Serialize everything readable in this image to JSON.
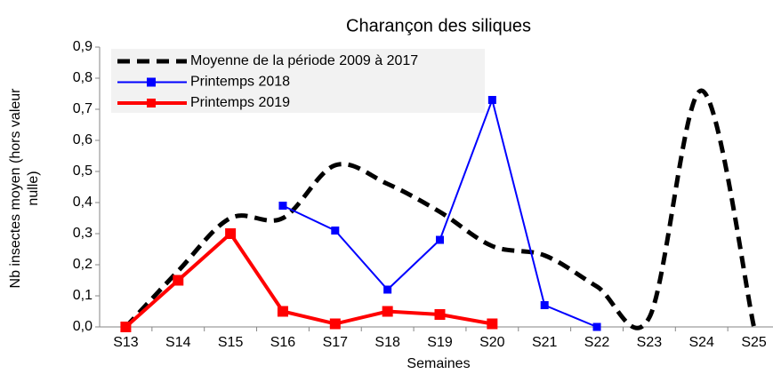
{
  "chart_data": {
    "type": "line",
    "title": "Charançon des siliques",
    "xlabel": "Semaines",
    "ylabel": [
      "Nb insectes moyen  (hors valeur",
      "nulle)"
    ],
    "categories": [
      "S13",
      "S14",
      "S15",
      "S16",
      "S17",
      "S18",
      "S19",
      "S20",
      "S21",
      "S22",
      "S23",
      "S24",
      "S25"
    ],
    "ylim": [
      0,
      0.9
    ],
    "yticks": [
      {
        "value": 0,
        "label": "0,0"
      },
      {
        "value": 0.1,
        "label": "0,1"
      },
      {
        "value": 0.2,
        "label": "0,2"
      },
      {
        "value": 0.3,
        "label": "0,3"
      },
      {
        "value": 0.4,
        "label": "0,4"
      },
      {
        "value": 0.5,
        "label": "0,5"
      },
      {
        "value": 0.6,
        "label": "0,6"
      },
      {
        "value": 0.7,
        "label": "0,7"
      },
      {
        "value": 0.8,
        "label": "0,8"
      },
      {
        "value": 0.9,
        "label": "0,9"
      }
    ],
    "legend": "upper left",
    "series": [
      {
        "name": "Moyenne de la période 2009 à 2017",
        "color": "#000000",
        "style": "dashed",
        "smooth": true,
        "values": [
          0,
          0.18,
          0.35,
          0.35,
          0.52,
          0.46,
          0.37,
          0.26,
          0.23,
          0.13,
          0.03,
          0.76,
          0
        ]
      },
      {
        "name": "Printemps 2018",
        "color": "#0000ff",
        "marker": "square",
        "values": [
          null,
          null,
          null,
          0.39,
          0.31,
          0.12,
          0.28,
          0.73,
          0.07,
          0,
          null,
          null,
          null
        ]
      },
      {
        "name": "Printemps 2019",
        "color": "#ff0000",
        "marker": "square",
        "values": [
          0,
          0.15,
          0.3,
          0.05,
          0.01,
          0.05,
          0.04,
          0.01,
          null,
          null,
          null,
          null,
          null
        ]
      }
    ]
  }
}
